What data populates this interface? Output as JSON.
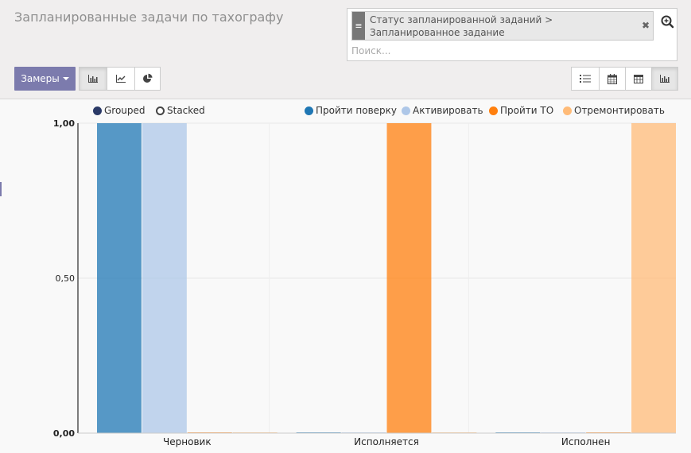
{
  "header": {
    "title": "Запланированные задачи по тахографу"
  },
  "search": {
    "facet_text": "Статус запланированной заданий > Запланированное задание",
    "placeholder": "Поиск..."
  },
  "toolbar": {
    "measures_label": "Замеры"
  },
  "colors": {
    "accent": "#7c7bad",
    "blue": "#1f77b4",
    "light_blue": "#aec7e8",
    "orange": "#ff7f0e",
    "light_orange": "#ffbb78"
  },
  "chart_controls": {
    "grouped_label": "Grouped",
    "stacked_label": "Stacked"
  },
  "chart_data": {
    "type": "bar",
    "mode": "grouped",
    "categories": [
      "Черновик",
      "Исполняется",
      "Исполнен"
    ],
    "series": [
      {
        "name": "Пройти поверку",
        "values": [
          1,
          0,
          0
        ],
        "color": "#1f77b4"
      },
      {
        "name": "Активировать",
        "values": [
          1,
          0,
          0
        ],
        "color": "#aec7e8"
      },
      {
        "name": "Пройти ТО",
        "values": [
          0,
          1,
          0
        ],
        "color": "#ff7f0e"
      },
      {
        "name": "Отремонтировать",
        "values": [
          0,
          0,
          1
        ],
        "color": "#ffbb78"
      }
    ],
    "yticks": [
      "0,00",
      "0,50",
      "1,00"
    ],
    "ylim": [
      0,
      1
    ],
    "grid": true,
    "legend": "top-right"
  }
}
